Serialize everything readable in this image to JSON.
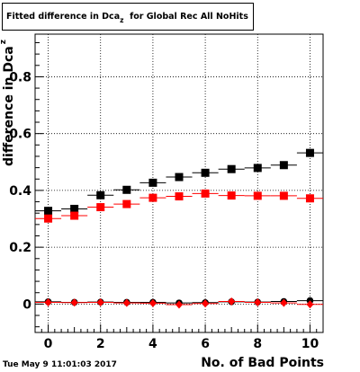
{
  "title": {
    "main": "Fitted difference in Dca",
    "sub": "z",
    "rest": "for Global Rec All NoHits"
  },
  "timestamp": "Tue May  9 11:01:03 2017",
  "colors": {
    "black": "#000000",
    "red": "#ff0000",
    "grid": "#000000"
  },
  "chart_data": {
    "type": "scatter",
    "title": "Fitted difference in Dcaz  for Global Rec All NoHits",
    "xlabel": "No. of Bad Points",
    "ylabel": "difference in Dca",
    "ylabel_sub": "z",
    "xlim": [
      -0.5,
      10.5
    ],
    "ylim": [
      -0.1,
      0.95
    ],
    "grid": true,
    "x_ticks": [
      0,
      2,
      4,
      6,
      8,
      10
    ],
    "y_ticks": [
      0,
      0.2,
      0.4,
      0.6,
      0.8
    ],
    "y_tick_labels": [
      "0",
      "0.2",
      "0.4",
      "0.6",
      "0.8"
    ],
    "x": [
      0,
      1,
      2,
      3,
      4,
      5,
      6,
      7,
      8,
      9,
      10
    ],
    "series": [
      {
        "marker": "square",
        "color": "#000000",
        "values": [
          0.328,
          0.335,
          0.383,
          0.402,
          0.427,
          0.447,
          0.462,
          0.475,
          0.479,
          0.489,
          0.532
        ]
      },
      {
        "marker": "square",
        "color": "#ff0000",
        "values": [
          0.301,
          0.311,
          0.341,
          0.352,
          0.374,
          0.379,
          0.389,
          0.382,
          0.381,
          0.381,
          0.372
        ]
      },
      {
        "marker": "circle",
        "color": "#000000",
        "values": [
          0.008,
          0.006,
          0.007,
          0.006,
          0.006,
          0.004,
          0.005,
          0.008,
          0.007,
          0.009,
          0.012
        ]
      },
      {
        "marker": "diamond",
        "color": "#ff0000",
        "values": [
          0.006,
          0.005,
          0.006,
          0.004,
          0.003,
          -0.002,
          0.002,
          0.009,
          0.006,
          0.004,
          -0.001
        ]
      }
    ]
  }
}
